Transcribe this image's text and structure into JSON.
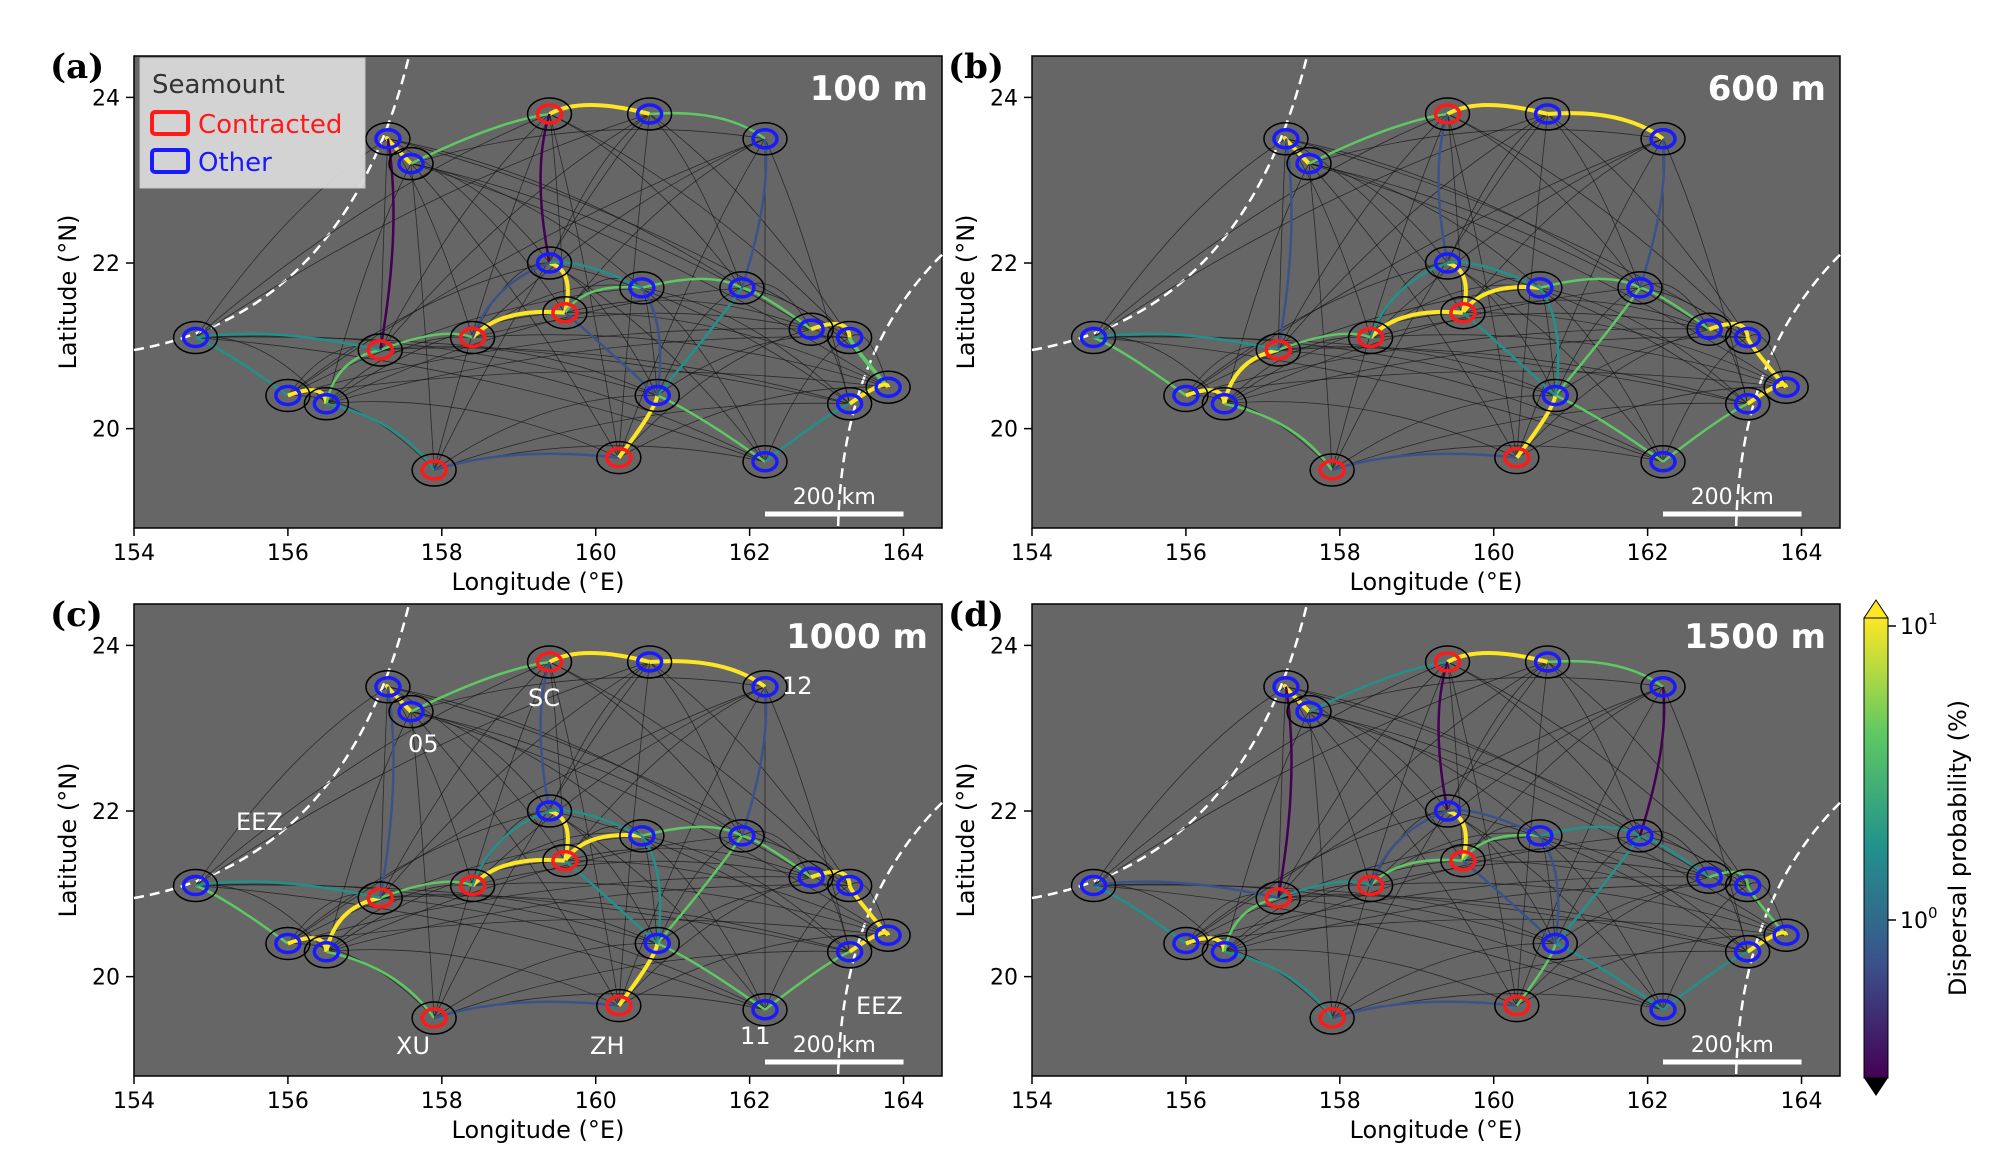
{
  "legend": {
    "title": "Seamount",
    "items": [
      {
        "label": "Contracted",
        "color": "#ff1a1a"
      },
      {
        "label": "Other",
        "color": "#1a1aff"
      }
    ]
  },
  "axes": {
    "xlabel": "Longitude (°E)",
    "ylabel": "Latitude (°N)",
    "xticks": [
      "154",
      "156",
      "158",
      "160",
      "162",
      "164"
    ],
    "yticks": [
      "20",
      "22",
      "24"
    ],
    "xlim": [
      154,
      164.5
    ],
    "ylim": [
      18.8,
      24.5
    ]
  },
  "scalebar": {
    "label": "200 km"
  },
  "colorbar": {
    "label": "Dispersal probability (%)",
    "tick_top": "10",
    "tick_top_exp": "1",
    "tick_mid": "10",
    "tick_mid_exp": "0",
    "colors": [
      "#440154",
      "#3b528b",
      "#21918c",
      "#5ec962",
      "#fde725"
    ]
  },
  "panels": [
    {
      "letter": "(a)",
      "depth": "100 m"
    },
    {
      "letter": "(b)",
      "depth": "600 m"
    },
    {
      "letter": "(c)",
      "depth": "1000 m"
    },
    {
      "letter": "(d)",
      "depth": "1500 m"
    }
  ],
  "annotations": {
    "SC": "SC",
    "n05": "05",
    "n12": "12",
    "XU": "XU",
    "ZH": "ZH",
    "n11": "11",
    "EEZ_left": "EEZ",
    "EEZ_right": "EEZ"
  },
  "chart_data": {
    "type": "map",
    "seamounts": [
      {
        "id": "A",
        "lon": 154.8,
        "lat": 21.1,
        "type": "Other"
      },
      {
        "id": "B",
        "lon": 156.0,
        "lat": 20.4,
        "type": "Other"
      },
      {
        "id": "C",
        "lon": 156.5,
        "lat": 20.3,
        "type": "Other"
      },
      {
        "id": "D",
        "lon": 157.2,
        "lat": 20.95,
        "type": "Contracted"
      },
      {
        "id": "05",
        "lon": 157.6,
        "lat": 23.2,
        "type": "Other"
      },
      {
        "id": "W",
        "lon": 157.3,
        "lat": 23.5,
        "type": "Other"
      },
      {
        "id": "XU",
        "lon": 157.9,
        "lat": 19.5,
        "type": "Contracted"
      },
      {
        "id": "E",
        "lon": 158.4,
        "lat": 21.1,
        "type": "Contracted"
      },
      {
        "id": "SC",
        "lon": 159.4,
        "lat": 23.8,
        "type": "Contracted"
      },
      {
        "id": "F",
        "lon": 159.4,
        "lat": 22.0,
        "type": "Other"
      },
      {
        "id": "G",
        "lon": 159.6,
        "lat": 21.4,
        "type": "Contracted"
      },
      {
        "id": "H",
        "lon": 160.7,
        "lat": 23.8,
        "type": "Other"
      },
      {
        "id": "I",
        "lon": 160.6,
        "lat": 21.7,
        "type": "Other"
      },
      {
        "id": "ZH",
        "lon": 160.3,
        "lat": 19.65,
        "type": "Contracted"
      },
      {
        "id": "J",
        "lon": 160.8,
        "lat": 20.4,
        "type": "Other"
      },
      {
        "id": "12",
        "lon": 162.2,
        "lat": 23.5,
        "type": "Other"
      },
      {
        "id": "K",
        "lon": 161.9,
        "lat": 21.7,
        "type": "Other"
      },
      {
        "id": "11",
        "lon": 162.2,
        "lat": 19.6,
        "type": "Other"
      },
      {
        "id": "L",
        "lon": 162.8,
        "lat": 21.2,
        "type": "Other"
      },
      {
        "id": "M",
        "lon": 163.3,
        "lat": 21.1,
        "type": "Other"
      },
      {
        "id": "N",
        "lon": 163.3,
        "lat": 20.3,
        "type": "Other"
      },
      {
        "id": "O",
        "lon": 163.8,
        "lat": 20.5,
        "type": "Other"
      }
    ],
    "connections": [
      [
        "W",
        "05",
        10
      ],
      [
        "05",
        "SC",
        3
      ],
      [
        "SC",
        "H",
        8
      ],
      [
        "H",
        "12",
        4
      ],
      [
        "SC",
        "F",
        0.6
      ],
      [
        "F",
        "G",
        10
      ],
      [
        "G",
        "I",
        4
      ],
      [
        "I",
        "K",
        3
      ],
      [
        "K",
        "L",
        3
      ],
      [
        "L",
        "M",
        6
      ],
      [
        "M",
        "O",
        5
      ],
      [
        "O",
        "N",
        7
      ],
      [
        "A",
        "B",
        2
      ],
      [
        "B",
        "C",
        9
      ],
      [
        "C",
        "D",
        4
      ],
      [
        "D",
        "E",
        3
      ],
      [
        "E",
        "G",
        6
      ],
      [
        "C",
        "XU",
        2
      ],
      [
        "XU",
        "ZH",
        0.8
      ],
      [
        "ZH",
        "J",
        6
      ],
      [
        "J",
        "11",
        3
      ],
      [
        "11",
        "N",
        2
      ],
      [
        "F",
        "I",
        1.5
      ],
      [
        "J",
        "K",
        2
      ],
      [
        "E",
        "F",
        1
      ],
      [
        "D",
        "W",
        0.5
      ],
      [
        "G",
        "J",
        1
      ],
      [
        "12",
        "K",
        0.7
      ],
      [
        "A",
        "D",
        1.5
      ],
      [
        "I",
        "J",
        1.2
      ]
    ]
  }
}
